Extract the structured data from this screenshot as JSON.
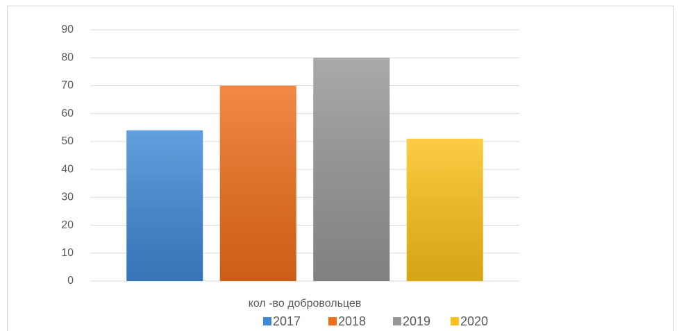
{
  "chart_data": {
    "type": "bar",
    "categories": [
      "кол -во добровольцев"
    ],
    "series": [
      {
        "name": "2017",
        "color": "#3f8ad6",
        "values": [
          54
        ]
      },
      {
        "name": "2018",
        "color": "#ef6f1c",
        "values": [
          70
        ]
      },
      {
        "name": "2019",
        "color": "#979797",
        "values": [
          80
        ]
      },
      {
        "name": "2020",
        "color": "#fcc21a",
        "values": [
          51
        ]
      }
    ],
    "ylim": [
      0,
      90
    ],
    "yticks": [
      0,
      10,
      20,
      30,
      40,
      50,
      60,
      70,
      80,
      90
    ],
    "grid": true,
    "legend": "bottom"
  }
}
